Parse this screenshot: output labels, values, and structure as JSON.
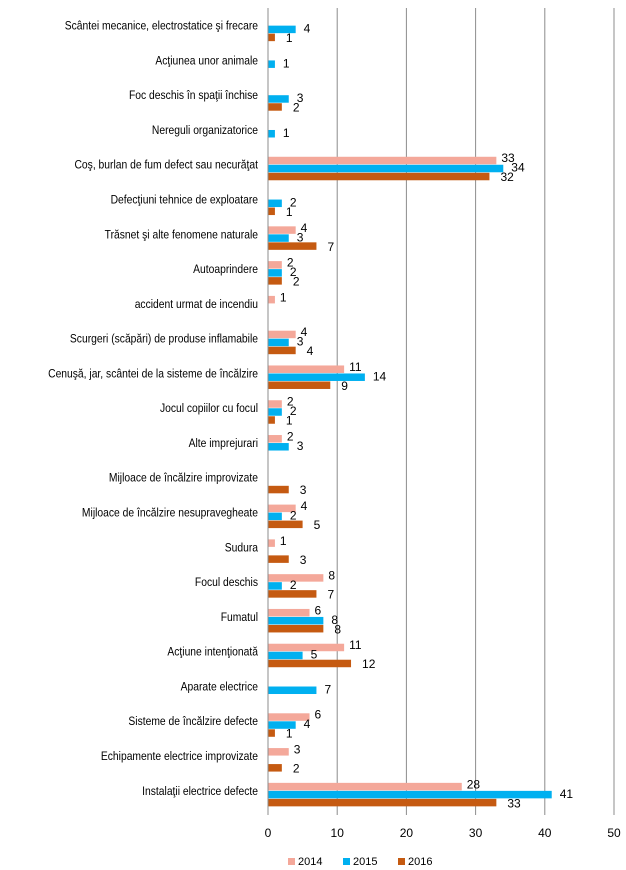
{
  "chart_data": {
    "type": "hbar",
    "categories": [
      "Scântei mecanice, electrostatice şi frecare",
      "Acţiunea unor animale",
      "Foc deschis în spaţii închise",
      "Nereguli organizatorice",
      "Coş, burlan de fum defect sau necurăţat",
      "Defecţiuni tehnice de exploatare",
      "Trăsnet şi alte fenomene naturale",
      "Autoaprindere",
      "accident urmat de incendiu",
      "Scurgeri (scăpări) de produse inflamabile",
      "Cenuşă, jar, scântei de la sisteme de încălzire",
      "Jocul copiilor cu focul",
      "Alte imprejurari",
      "Mijloace de încălzire improvizate",
      "Mijloace de încălzire nesupravegheate",
      "Sudura",
      "Focul deschis",
      "Fumatul",
      "Acţiune intenţionată",
      "Aparate electrice",
      "Sisteme de încălzire defecte",
      "Echipamente electrice improvizate",
      "Instalaţii electrice defecte"
    ],
    "series": [
      {
        "name": "2014",
        "color": "#f4a89a",
        "values": [
          null,
          null,
          null,
          null,
          33,
          null,
          4,
          2,
          1,
          4,
          11,
          2,
          2,
          null,
          4,
          1,
          8,
          6,
          11,
          null,
          6,
          3,
          28
        ]
      },
      {
        "name": "2015",
        "color": "#00b0f0",
        "values": [
          4,
          1,
          3,
          1,
          34,
          2,
          3,
          2,
          null,
          3,
          14,
          2,
          3,
          null,
          2,
          null,
          2,
          8,
          5,
          7,
          4,
          null,
          41
        ]
      },
      {
        "name": "2016",
        "color": "#c55a11",
        "values": [
          1,
          null,
          2,
          null,
          32,
          1,
          7,
          2,
          null,
          4,
          9,
          1,
          null,
          3,
          5,
          3,
          7,
          8,
          12,
          null,
          1,
          2,
          33
        ]
      }
    ],
    "xlim": [
      0,
      50
    ],
    "xticks": [
      0,
      10,
      20,
      30,
      40,
      50
    ],
    "grid": true,
    "legend": "bottom"
  }
}
